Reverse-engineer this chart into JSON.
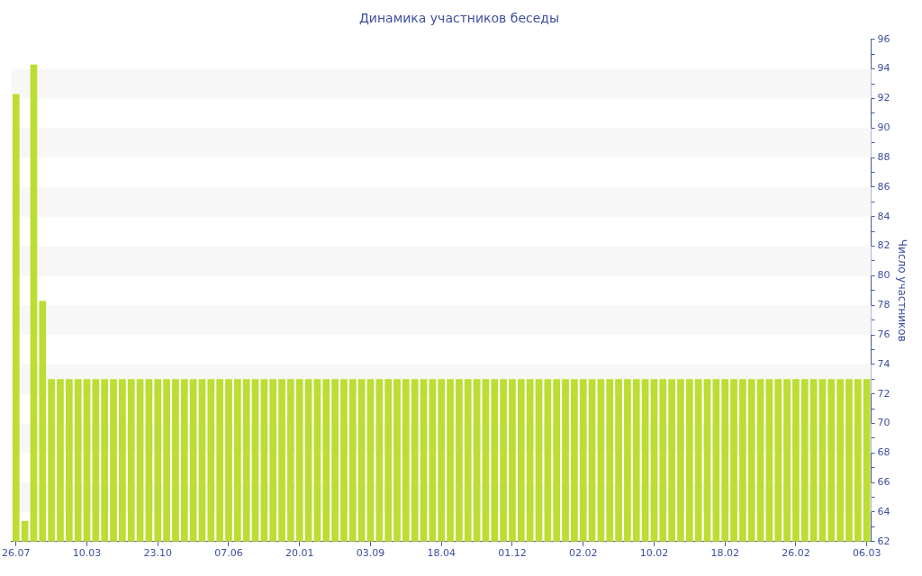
{
  "chart_data": {
    "type": "bar",
    "title": "Динамика участников беседы",
    "ylabel": "Число участников",
    "categories": [
      "26.07",
      null,
      null,
      null,
      null,
      null,
      null,
      null,
      "10.03",
      null,
      null,
      null,
      null,
      null,
      null,
      null,
      "23.10",
      null,
      null,
      null,
      null,
      null,
      null,
      null,
      "07.06",
      null,
      null,
      null,
      null,
      null,
      null,
      null,
      "20.01",
      null,
      null,
      null,
      null,
      null,
      null,
      null,
      "03.09",
      null,
      null,
      null,
      null,
      null,
      null,
      null,
      "18.04",
      null,
      null,
      null,
      null,
      null,
      null,
      null,
      "01.12",
      null,
      null,
      null,
      null,
      null,
      null,
      null,
      "02.02",
      null,
      null,
      null,
      null,
      null,
      null,
      null,
      "10.02",
      null,
      null,
      null,
      null,
      null,
      null,
      null,
      "18.02",
      null,
      null,
      null,
      null,
      null,
      null,
      null,
      "26.02",
      null,
      null,
      null,
      null,
      null,
      null,
      null,
      "06.03"
    ],
    "values": [
      92.3,
      63.4,
      94.3,
      78.3,
      73,
      73,
      73,
      73,
      73,
      73,
      73,
      73,
      73,
      73,
      73,
      73,
      73,
      73,
      73,
      73,
      73,
      73,
      73,
      73,
      73,
      73,
      73,
      73,
      73,
      73,
      73,
      73,
      73,
      73,
      73,
      73,
      73,
      73,
      73,
      73,
      73,
      73,
      73,
      73,
      73,
      73,
      73,
      73,
      73,
      73,
      73,
      73,
      73,
      73,
      73,
      73,
      73,
      73,
      73,
      73,
      73,
      73,
      73,
      73,
      73,
      73,
      73,
      73,
      73,
      73,
      73,
      73,
      73,
      73,
      73,
      73,
      73,
      73,
      73,
      73,
      73,
      73,
      73,
      73,
      73,
      73,
      73,
      73,
      73,
      73,
      73,
      73,
      73,
      73,
      73,
      73,
      73
    ],
    "color": "#bcdd31",
    "ylim": [
      62,
      96
    ],
    "yticks": [
      62,
      {
        "value": 63,
        "label": null
      },
      64,
      {
        "value": 65,
        "label": null
      },
      66,
      {
        "value": 67,
        "label": null
      },
      68,
      {
        "value": 69,
        "label": null
      },
      70,
      {
        "value": 71,
        "label": null
      },
      72,
      {
        "value": 73,
        "label": null
      },
      74,
      {
        "value": 75,
        "label": null
      },
      76,
      {
        "value": 77,
        "label": null
      },
      78,
      {
        "value": 79,
        "label": null
      },
      80,
      {
        "value": 81,
        "label": null
      },
      82,
      {
        "value": 83,
        "label": null
      },
      84,
      {
        "value": 85,
        "label": null
      },
      86,
      {
        "value": 87,
        "label": null
      },
      88,
      {
        "value": 89,
        "label": null
      },
      90,
      {
        "value": 91,
        "label": null
      },
      92,
      {
        "value": 93,
        "label": null
      },
      94,
      {
        "value": 95,
        "label": null
      },
      96
    ],
    "bands": [
      {
        "axis": "y",
        "from": 64,
        "to": 66,
        "color": "#f7f7f7"
      },
      {
        "axis": "y",
        "from": 68,
        "to": 70,
        "color": "#f7f7f7"
      },
      {
        "axis": "y",
        "from": 72,
        "to": 74,
        "color": "#f7f7f7"
      },
      {
        "axis": "y",
        "from": 76,
        "to": 78,
        "color": "#f7f7f7"
      },
      {
        "axis": "y",
        "from": 80,
        "to": 82,
        "color": "#f7f7f7"
      },
      {
        "axis": "y",
        "from": 84,
        "to": 86,
        "color": "#f7f7f7"
      },
      {
        "axis": "y",
        "from": 88,
        "to": 90,
        "color": "#f7f7f7"
      },
      {
        "axis": "y",
        "from": 92,
        "to": 94,
        "color": "#f7f7f7"
      }
    ]
  }
}
